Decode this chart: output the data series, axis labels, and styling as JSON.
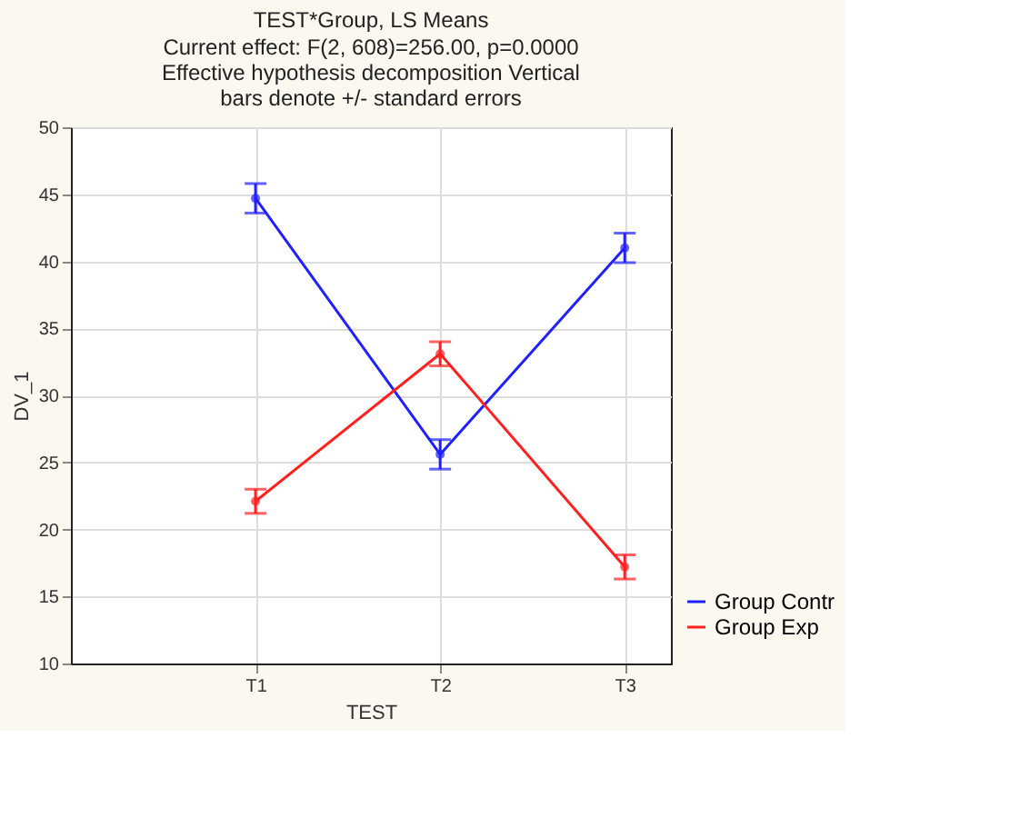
{
  "chart_data": {
    "type": "line",
    "title": "TEST*Group, LS Means",
    "subtitle": "Current effect: F(2, 608)=256.00, p=0.0000 Effective hypothesis decomposition Vertical bars denote +/- standard errors",
    "xlabel": "TEST",
    "ylabel": "DV_1",
    "categories": [
      "T1",
      "T2",
      "T3"
    ],
    "series": [
      {
        "name": "Group Contr",
        "color": "#2020ff",
        "values": [
          44.7,
          25.6,
          41.0
        ],
        "errors": [
          1.1,
          1.1,
          1.1
        ]
      },
      {
        "name": "Group Exp",
        "color": "#ff2020",
        "values": [
          22.1,
          33.1,
          17.2
        ],
        "errors": [
          0.9,
          0.9,
          0.9
        ]
      }
    ],
    "ylim": [
      10,
      50
    ],
    "yticks": [
      10,
      15,
      20,
      25,
      30,
      35,
      40,
      45,
      50
    ],
    "grid": true,
    "legend": "bottom right",
    "marker": "circle",
    "line_style": "solid"
  }
}
